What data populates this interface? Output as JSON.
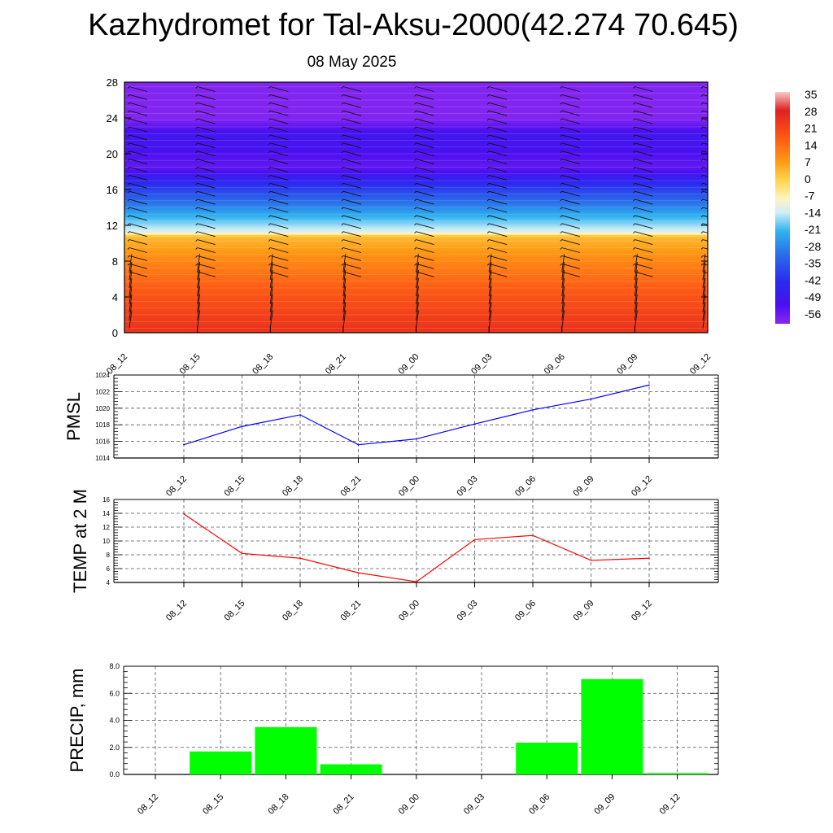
{
  "title": "Kazhydromet for Tal-Aksu-2000(42.274 70.645)",
  "subtitle": "08 May 2025",
  "chart_data": [
    {
      "type": "heatmap",
      "name": "temperature-wind cross-section",
      "x_ticks": [
        "08_12",
        "08_15",
        "08_18",
        "08_21",
        "09_00",
        "09_03",
        "09_06",
        "09_09",
        "09_12"
      ],
      "y_ticks": [
        0,
        4,
        8,
        12,
        16,
        20,
        24,
        28
      ],
      "ylim": [
        0,
        28
      ],
      "colorbar": {
        "labels": [
          35,
          28,
          21,
          14,
          7,
          0,
          -7,
          -14,
          -21,
          -28,
          -35,
          -42,
          -49,
          -56
        ],
        "range": [
          -63,
          42
        ]
      },
      "color_levels": [
        {
          "level": 0,
          "value": 24
        },
        {
          "level": 4,
          "value": 16
        },
        {
          "level": 8,
          "value": 7
        },
        {
          "level": 10.8,
          "value": 0
        },
        {
          "level": 11.2,
          "value": -12
        },
        {
          "level": 13,
          "value": -22
        },
        {
          "level": 16,
          "value": -40
        },
        {
          "level": 18.5,
          "value": -58
        },
        {
          "level": 22,
          "value": -52
        },
        {
          "level": 24,
          "value": -62
        },
        {
          "level": 28,
          "value": -62
        }
      ]
    },
    {
      "type": "line",
      "ylabel": "PMSL",
      "x": [
        "08_12",
        "08_15",
        "08_18",
        "08_21",
        "09_00",
        "09_03",
        "09_06",
        "09_09",
        "09_12"
      ],
      "values": [
        1015.6,
        1017.8,
        1019.2,
        1015.6,
        1016.3,
        1018.1,
        1019.8,
        1021.1,
        1022.8
      ],
      "ylim": [
        1014,
        1024
      ],
      "y_ticks": [
        1014,
        1016,
        1018,
        1020,
        1022,
        1024
      ],
      "color": "#0000ff",
      "grid": true
    },
    {
      "type": "line",
      "ylabel": "TEMP at 2 M",
      "x": [
        "08_12",
        "08_15",
        "08_18",
        "08_21",
        "09_00",
        "09_03",
        "09_06",
        "09_09",
        "09_12"
      ],
      "values": [
        13.9,
        8.2,
        7.5,
        5.4,
        4.1,
        10.2,
        10.8,
        7.2,
        7.5
      ],
      "ylim": [
        4,
        16
      ],
      "y_ticks": [
        4,
        6,
        8,
        10,
        12,
        14,
        16
      ],
      "color": "#ff0000",
      "grid": true
    },
    {
      "type": "bar",
      "ylabel": "PRECIP, mm",
      "categories": [
        "08_12",
        "08_15",
        "08_18",
        "08_21",
        "09_00",
        "09_03",
        "09_06",
        "09_09",
        "09_12"
      ],
      "values": [
        0.0,
        1.7,
        3.5,
        0.75,
        0.0,
        0.0,
        2.35,
        7.05,
        0.1
      ],
      "ylim": [
        0,
        8
      ],
      "y_ticks": [
        "0.0",
        "2.0",
        "4.0",
        "6.0",
        "8.0"
      ],
      "color": "#00ff00",
      "grid": true
    }
  ]
}
